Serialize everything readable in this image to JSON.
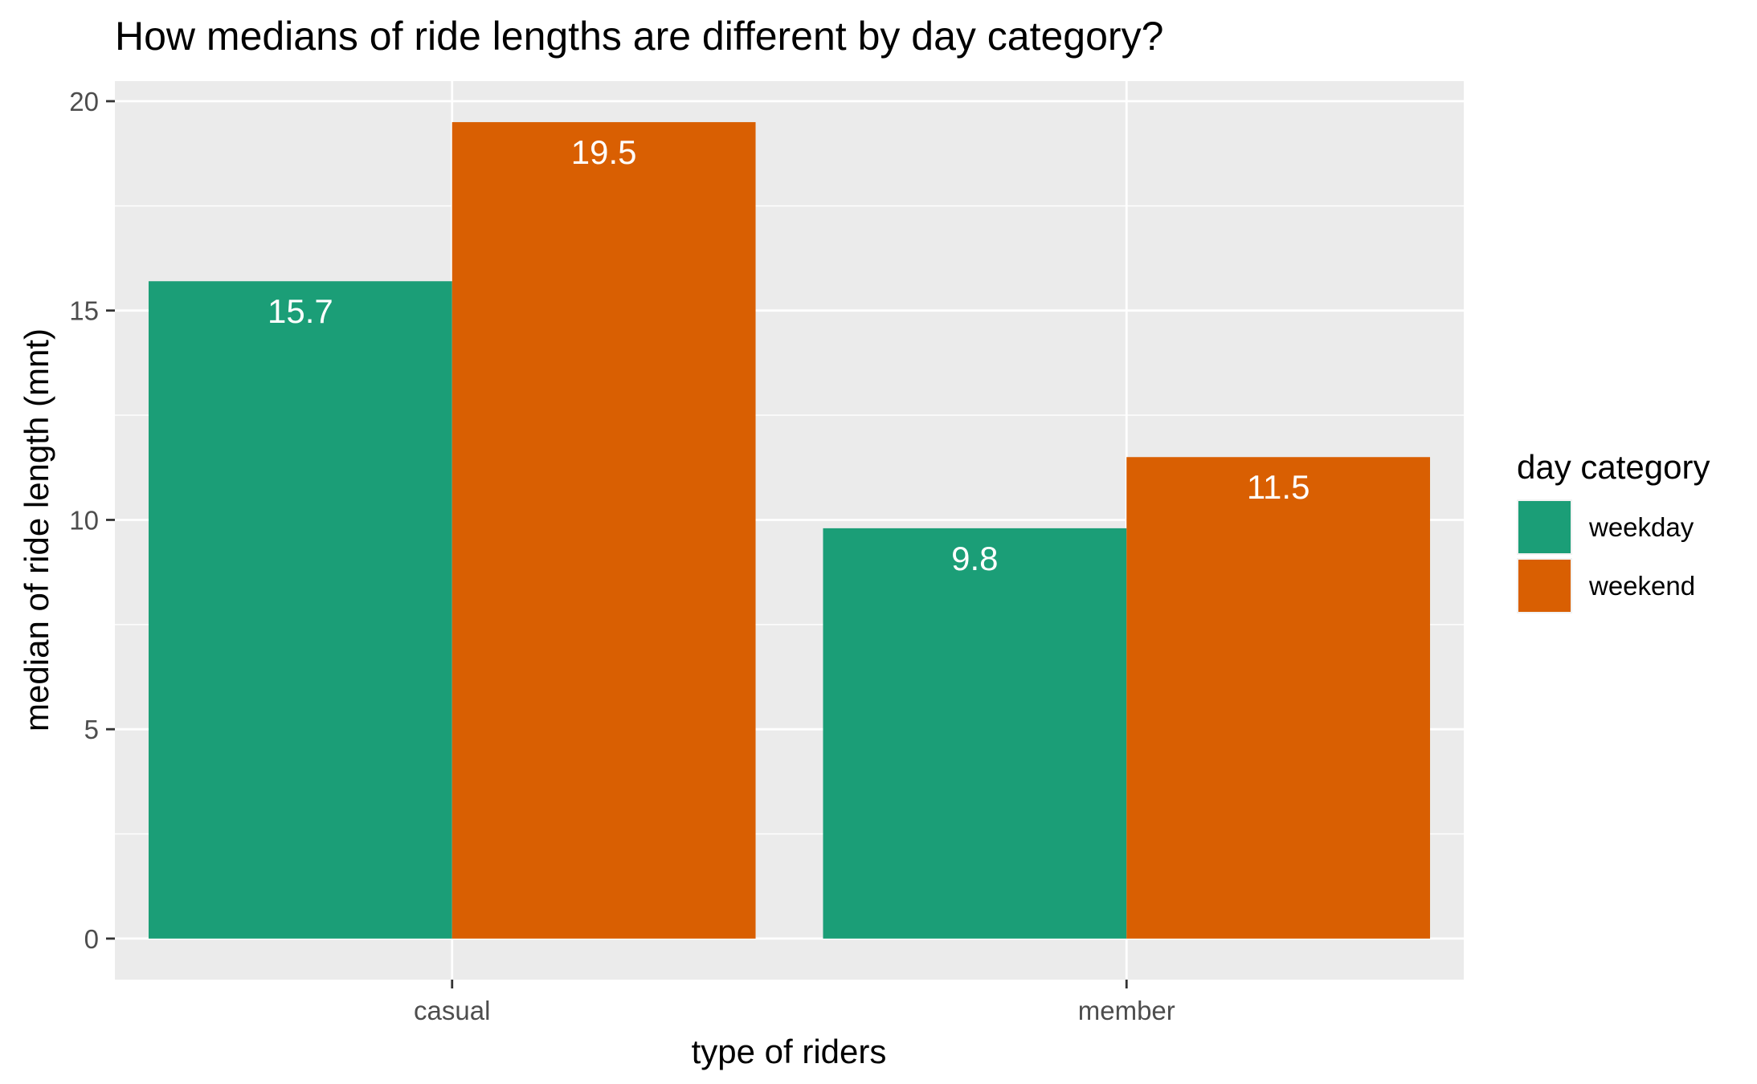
{
  "colors": {
    "panel_background": "#ebebeb",
    "gridline": "#ffffff",
    "tick_label": "#4d4d4d",
    "text": "#000000",
    "bar_label": "#ffffff"
  },
  "chart_data": {
    "type": "bar",
    "title": "How medians of ride lengths are different by day category?",
    "xlabel": "type of riders",
    "ylabel": "median of ride length (mnt)",
    "categories": [
      "casual",
      "member"
    ],
    "series": [
      {
        "name": "weekday",
        "color": "#1b9e77",
        "values": [
          15.7,
          9.8
        ],
        "labels": [
          "15.7",
          "9.8"
        ]
      },
      {
        "name": "weekend",
        "color": "#d95f02",
        "values": [
          19.5,
          11.5
        ],
        "labels": [
          "19.5",
          "11.5"
        ]
      }
    ],
    "ylim": [
      -0.98,
      20.48
    ],
    "yticks": [
      0,
      5,
      10,
      15,
      20
    ],
    "ytick_labels": [
      "0",
      "5",
      "10",
      "15",
      "20"
    ],
    "grid": true,
    "legend": {
      "title": "day category",
      "position": "right"
    }
  }
}
